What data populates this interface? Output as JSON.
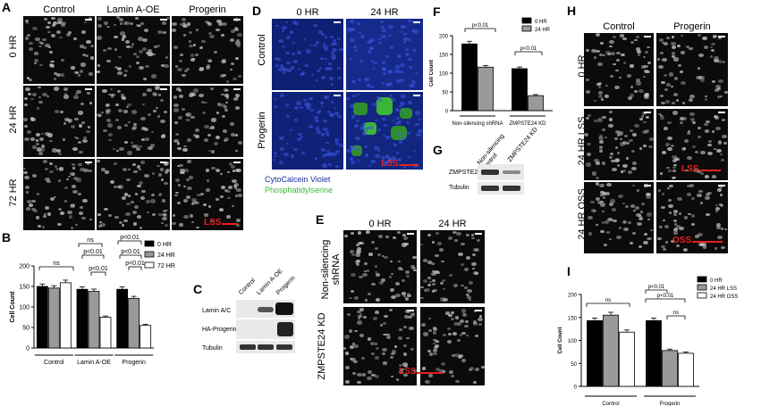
{
  "panels": {
    "A": {
      "label": "A",
      "columns": [
        "Control",
        "Lamin A-OE",
        "Progerin"
      ],
      "rows": [
        "0 HR",
        "24 HR",
        "72 HR"
      ],
      "arrow": "LSS"
    },
    "B": {
      "label": "B"
    },
    "C": {
      "label": "C",
      "lanes": [
        "Control",
        "Lamin A-OE",
        "Progerin"
      ],
      "rows": [
        "Lamin A/C",
        "HA-Progerin",
        "Tubulin"
      ]
    },
    "D": {
      "label": "D",
      "columns": [
        "0 HR",
        "24 HR"
      ],
      "rows": [
        "Control",
        "Progerin"
      ],
      "arrow": "LSS",
      "stain1": "CytoCalcein Violet",
      "stain2": "Phosphatidylserine"
    },
    "E": {
      "label": "E",
      "columns": [
        "0 HR",
        "24 HR"
      ],
      "rows": [
        "Non-silencing shRNA",
        "ZMPSTE24 KD"
      ],
      "arrow": "LSS"
    },
    "F": {
      "label": "F"
    },
    "G": {
      "label": "G",
      "lanes": [
        "Non-silencing control",
        "ZMPSTE24 KD"
      ],
      "rows": [
        "ZMPSTE24",
        "Tubulin"
      ]
    },
    "H": {
      "label": "H",
      "columns": [
        "Control",
        "Progerin"
      ],
      "rows": [
        "0 HR",
        "24 HR LSS",
        "24 HR OSS"
      ],
      "arrow_lss": "LSS",
      "arrow_oss": "OSS"
    },
    "I": {
      "label": "I"
    }
  },
  "colors": {
    "red": "#e8201f",
    "black": "#000000",
    "grey": "#9a9a9a",
    "white": "#ffffff",
    "blue": "#1a2f9c",
    "green": "#3bb53a"
  },
  "chart_data": [
    {
      "panel": "B",
      "type": "bar",
      "categories": [
        "Control",
        "Lamin A-OE",
        "Progerin"
      ],
      "series": [
        {
          "name": "0 HR",
          "values": [
            150,
            143,
            143
          ]
        },
        {
          "name": "24 HR",
          "values": [
            146,
            138,
            121
          ]
        },
        {
          "name": "72 HR",
          "values": [
            159,
            75,
            55
          ]
        }
      ],
      "ylabel": "Cell Count",
      "ylim": [
        0,
        200
      ],
      "yticks": [
        0,
        50,
        100,
        150,
        200
      ],
      "annotations": [
        "ns",
        "ns",
        "p<0.01",
        "p<0.01",
        "p<0.01",
        "p<0.01",
        "p<0.01"
      ],
      "legend": "right"
    },
    {
      "panel": "F",
      "type": "bar",
      "categories": [
        "Non-silencing shRNA",
        "ZMPSTE24 KD"
      ],
      "series": [
        {
          "name": "0 HR",
          "values": [
            178,
            112
          ]
        },
        {
          "name": "24 HR",
          "values": [
            116,
            40
          ]
        }
      ],
      "ylabel": "Cell Count",
      "ylim": [
        0,
        200
      ],
      "yticks": [
        0,
        50,
        100,
        150,
        200
      ],
      "annotations": [
        "p<0.01",
        "p<0.01"
      ],
      "legend": "top-right"
    },
    {
      "panel": "I",
      "type": "bar",
      "categories": [
        "Control",
        "Progerin"
      ],
      "series": [
        {
          "name": "0 HR",
          "values": [
            143,
            143
          ]
        },
        {
          "name": "24 HR LSS",
          "values": [
            155,
            78
          ]
        },
        {
          "name": "24 HR OSS",
          "values": [
            118,
            72
          ]
        }
      ],
      "ylabel": "Cell Count",
      "ylim": [
        0,
        200
      ],
      "yticks": [
        0,
        50,
        100,
        150,
        200
      ],
      "annotations": [
        "ns",
        "p<0.01",
        "p<0.01",
        "ns"
      ],
      "legend": "top-right"
    }
  ]
}
